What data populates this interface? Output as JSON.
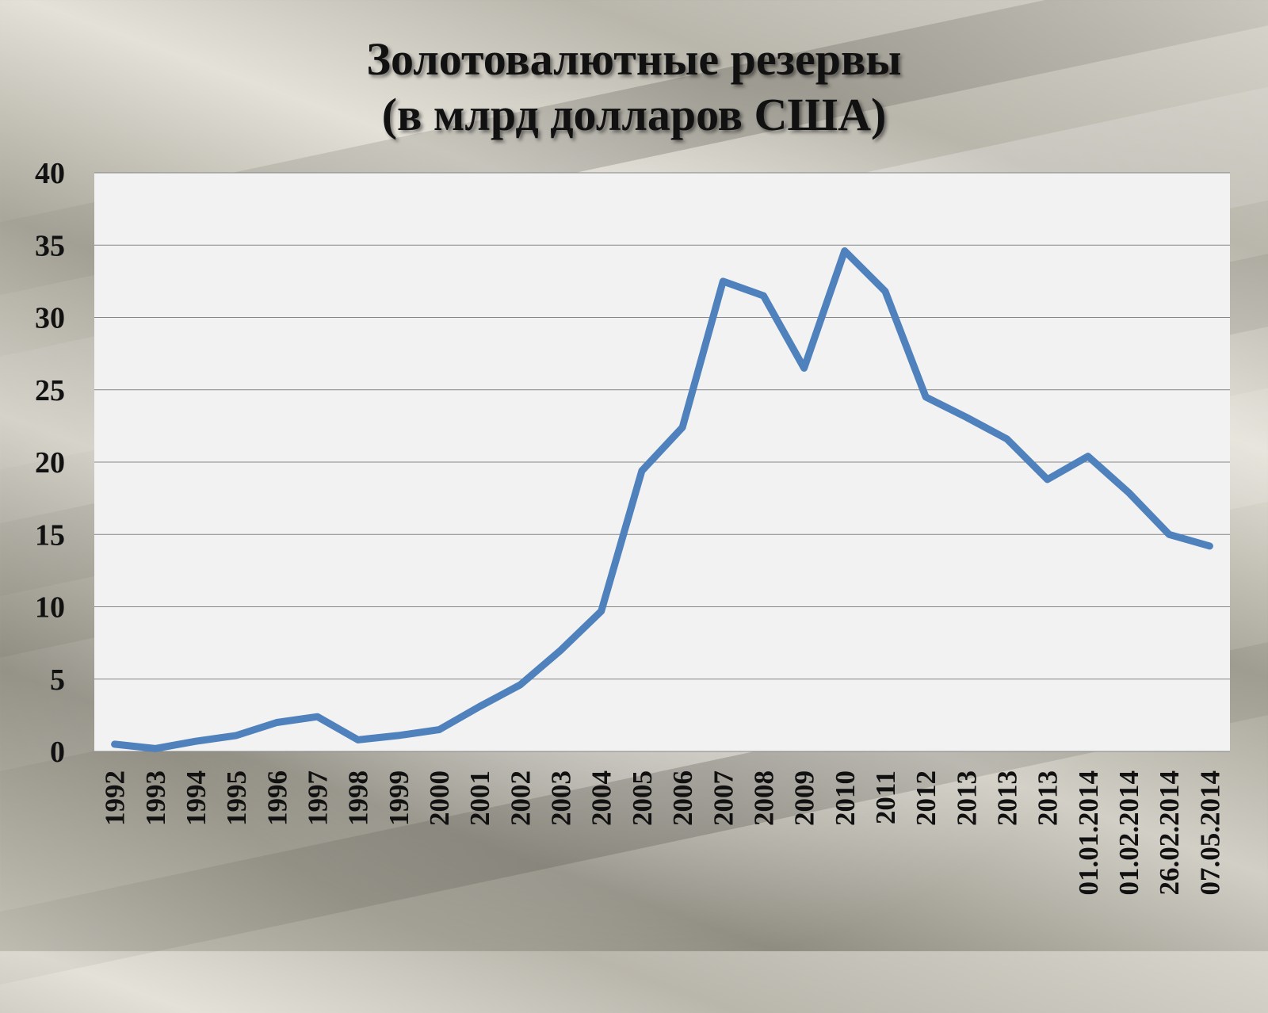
{
  "title_line1": "Золотовалютные резервы",
  "title_line2": "(в млрд долларов США)",
  "chart_data": {
    "type": "line",
    "categories": [
      "1992",
      "1993",
      "1994",
      "1995",
      "1996",
      "1997",
      "1998",
      "1999",
      "2000",
      "2001",
      "2002",
      "2003",
      "2004",
      "2005",
      "2006",
      "2007",
      "2008",
      "2009",
      "2010",
      "2011",
      "2012",
      "2013",
      "2013",
      "2013",
      "01.01.2014",
      "01.02.2014",
      "26.02.2014",
      "07.05.2014"
    ],
    "series": [
      {
        "values": [
          0.5,
          0.2,
          0.7,
          1.1,
          2.0,
          2.4,
          0.8,
          1.1,
          1.5,
          3.1,
          4.6,
          7.0,
          9.7,
          19.4,
          22.4,
          32.5,
          31.5,
          26.5,
          34.6,
          31.8,
          24.5,
          23.1,
          21.6,
          18.8,
          20.4,
          17.9,
          15.0,
          14.2
        ],
        "color": "#4f81bd"
      }
    ],
    "yticks": [
      0,
      5,
      10,
      15,
      20,
      25,
      30,
      35,
      40
    ],
    "ylim": [
      0,
      40
    ],
    "grid": true,
    "plot_bg": "#f2f2f2",
    "grid_color": "#868686"
  }
}
